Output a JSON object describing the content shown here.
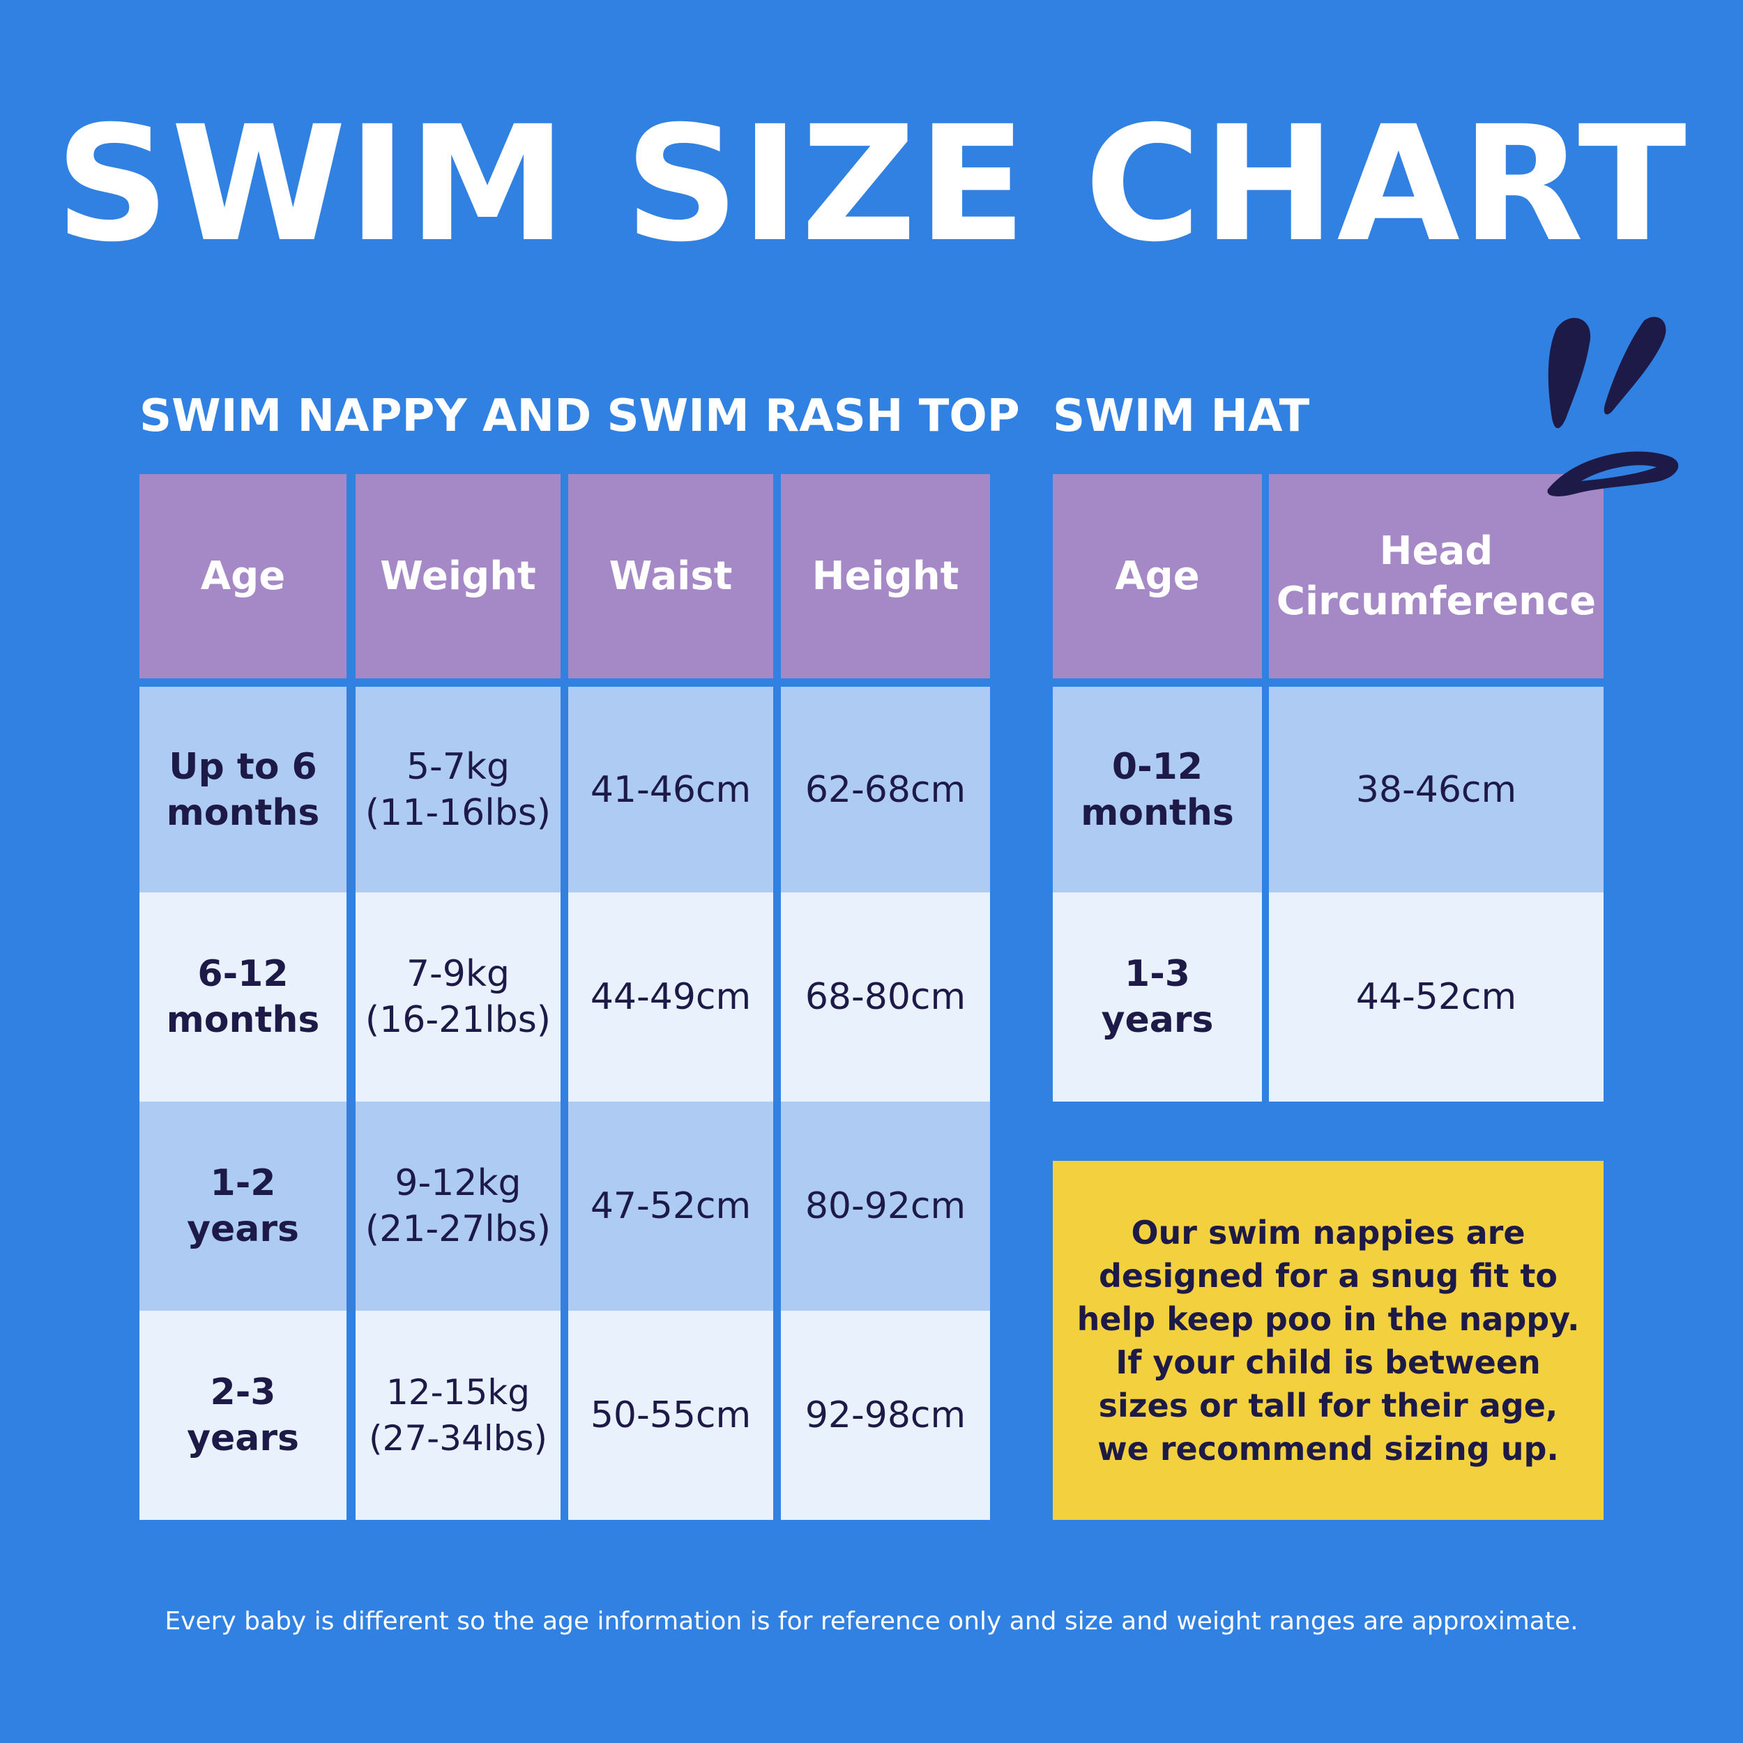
{
  "title": "SWIM SIZE CHART",
  "nappy": {
    "heading": "SWIM NAPPY AND SWIM RASH TOP",
    "headers": [
      "Age",
      "Weight",
      "Waist",
      "Height"
    ],
    "rows": [
      {
        "age_line1": "Up to 6",
        "age_line2": "months",
        "weight_line1": "5-7kg",
        "weight_line2": "(11-16lbs)",
        "waist": "41-46cm",
        "height": "62-68cm"
      },
      {
        "age_line1": "6-12",
        "age_line2": "months",
        "weight_line1": "7-9kg",
        "weight_line2": "(16-21lbs)",
        "waist": "44-49cm",
        "height": "68-80cm"
      },
      {
        "age_line1": "1-2",
        "age_line2": "years",
        "weight_line1": "9-12kg",
        "weight_line2": "(21-27lbs)",
        "waist": "47-52cm",
        "height": "80-92cm"
      },
      {
        "age_line1": "2-3",
        "age_line2": "years",
        "weight_line1": "12-15kg",
        "weight_line2": "(27-34lbs)",
        "waist": "50-55cm",
        "height": "92-98cm"
      }
    ]
  },
  "hat": {
    "heading": "SWIM HAT",
    "headers": {
      "age": "Age",
      "head_line1": "Head",
      "head_line2": "Circumference"
    },
    "rows": [
      {
        "age_line1": "0-12",
        "age_line2": "months",
        "circumference": "38-46cm"
      },
      {
        "age_line1": "1-3",
        "age_line2": "years",
        "circumference": "44-52cm"
      }
    ]
  },
  "note": {
    "lines": [
      "Our swim nappies are",
      "designed for a snug fit to",
      "help keep poo in the nappy.",
      "If your child is between",
      "sizes or tall for their age,",
      "we recommend sizing up."
    ]
  },
  "footer": "Every baby is different so the age information is for reference only and size and weight ranges are approximate.",
  "colors": {
    "background": "#3181e2",
    "header": "#a588c6",
    "row_dark": "#aecbf3",
    "row_light": "#e9f1fc",
    "note": "#f2d03e",
    "text_dark": "#1d1a47"
  },
  "decoration_icon": "splash-icon"
}
